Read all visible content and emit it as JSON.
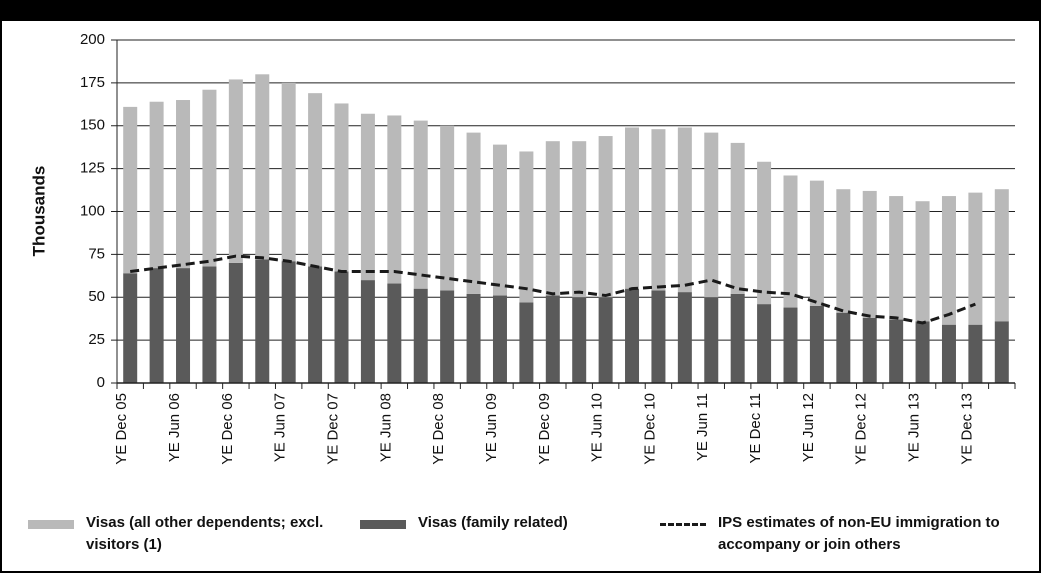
{
  "chart_data": {
    "type": "bar",
    "stacked": true,
    "y_label": "Thousands",
    "categories": [
      "YE Dec 05",
      null,
      "YE Jun 06",
      null,
      "YE Dec 06",
      null,
      "YE Jun 07",
      null,
      "YE Dec 07",
      null,
      "YE Jun 08",
      null,
      "YE Dec 08",
      null,
      "YE Jun 09",
      null,
      "YE Dec 09",
      null,
      "YE Jun 10",
      null,
      "YE Dec 10",
      null,
      "YE Jun 11",
      null,
      "YE Dec 11",
      null,
      "YE Jun 12",
      null,
      "YE Dec 12",
      null,
      "YE Jun 13",
      null,
      "YE Dec 13",
      null
    ],
    "series": [
      {
        "name": "Visas (family related)",
        "color": "#5a5a5a",
        "values": [
          64,
          67,
          67,
          68,
          70,
          72,
          71,
          68,
          65,
          60,
          58,
          55,
          54,
          52,
          51,
          47,
          51,
          50,
          50,
          55,
          54,
          53,
          50,
          52,
          46,
          44,
          45,
          41,
          38,
          37,
          36,
          34,
          34,
          36
        ]
      },
      {
        "name": "Visas (all other dependents; excl. visitors (1)",
        "color": "#b9b9b9",
        "values": [
          97,
          97,
          98,
          103,
          107,
          108,
          104,
          101,
          98,
          97,
          98,
          98,
          96,
          94,
          88,
          88,
          90,
          91,
          94,
          94,
          94,
          96,
          96,
          88,
          83,
          77,
          73,
          72,
          74,
          72,
          70,
          75,
          77,
          77
        ]
      },
      {
        "name": "IPS estimates of non-EU immigration to accompany or join others",
        "type": "line",
        "color": "#1a1a1a",
        "dashed": true,
        "values": [
          65,
          67,
          69,
          71,
          74,
          73,
          71,
          68,
          65,
          65,
          65,
          63,
          61,
          59,
          57,
          55,
          52,
          53,
          51,
          55,
          56,
          57,
          60,
          55,
          53,
          52,
          47,
          42,
          39,
          38,
          35,
          40,
          46,
          null
        ]
      }
    ],
    "ylim": [
      0,
      200
    ],
    "yticks": [
      0,
      25,
      50,
      75,
      100,
      125,
      150,
      175,
      200
    ],
    "grid": true,
    "legend": "bottom"
  }
}
